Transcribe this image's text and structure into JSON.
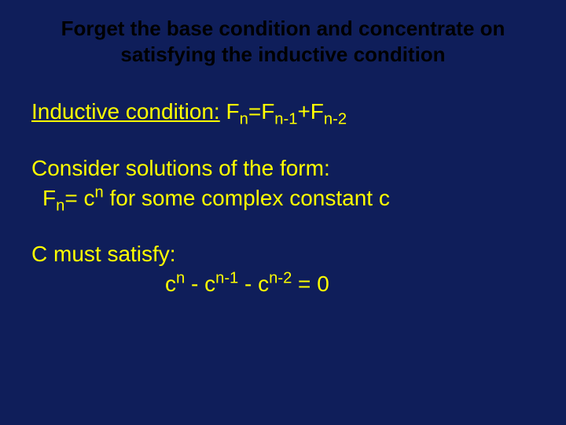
{
  "slide": {
    "background_color": "#0f1e5a",
    "body_color": "#ffff00",
    "title_color": "#000000",
    "font_family": "Comic Sans MS",
    "title_fontsize": 26,
    "body_fontsize": 28,
    "title_line1": "Forget the base condition and concentrate on",
    "title_line2": "satisfying the inductive condition",
    "inductive_label": "Inductive condition:",
    "inductive_formula_parts": {
      "F1": "F",
      "sub1": "n",
      "eq": "=",
      "F2": "F",
      "sub2": "n-1",
      "plus": "+",
      "F3": "F",
      "sub3": "n-2"
    },
    "consider_line": "Consider solutions of the form:",
    "fn_parts": {
      "F": "F",
      "subn": "n",
      "eq": "= c",
      "supn": "n",
      "tail": " for some complex constant c"
    },
    "satisfy_line": "C must satisfy:",
    "eq_parts": {
      "c1": "c",
      "e1": "n",
      "m1": " - c",
      "e2": "n-1",
      "m2": " - c",
      "e3": "n-2",
      "tail": " = 0"
    }
  }
}
